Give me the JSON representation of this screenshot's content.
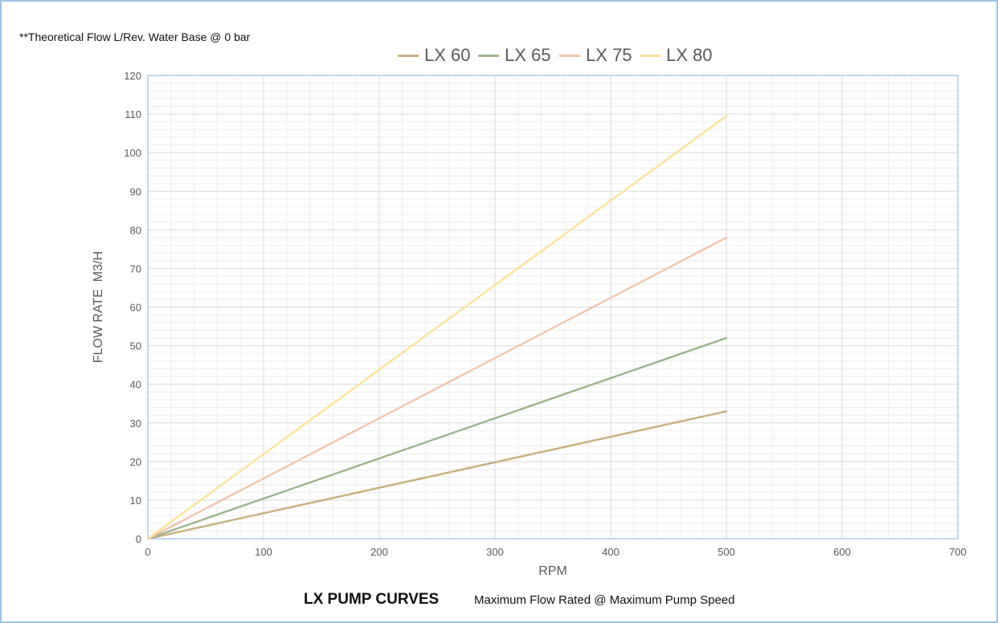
{
  "note": "**Theoretical Flow L/Rev. Water Base @ 0 bar",
  "caption": {
    "title": "LX PUMP CURVES",
    "subtitle": "Maximum Flow Rated @ Maximum Pump Speed"
  },
  "chart_data": {
    "type": "line",
    "title": "",
    "xlabel": "RPM",
    "ylabel": "FLOW RATE  M3/H",
    "xlim": [
      0,
      700
    ],
    "ylim": [
      0,
      120
    ],
    "x_ticks": [
      "0",
      "100",
      "200",
      "300",
      "400",
      "500",
      "600",
      "700"
    ],
    "y_ticks": [
      "0",
      "10",
      "20",
      "30",
      "40",
      "50",
      "60",
      "70",
      "80",
      "90",
      "100",
      "110",
      "120"
    ],
    "grid": true,
    "legend_position": "top",
    "series": [
      {
        "name": "LX 60",
        "color": "#c8b07e",
        "x": [
          0,
          500
        ],
        "y": [
          0,
          33
        ]
      },
      {
        "name": "LX 65",
        "color": "#9cb38c",
        "x": [
          0,
          500
        ],
        "y": [
          0,
          52
        ]
      },
      {
        "name": "LX 75",
        "color": "#f2c3ad",
        "x": [
          0,
          500
        ],
        "y": [
          0,
          78
        ]
      },
      {
        "name": "LX 80",
        "color": "#fbe39a",
        "x": [
          0,
          500
        ],
        "y": [
          0,
          109.5
        ]
      }
    ]
  }
}
